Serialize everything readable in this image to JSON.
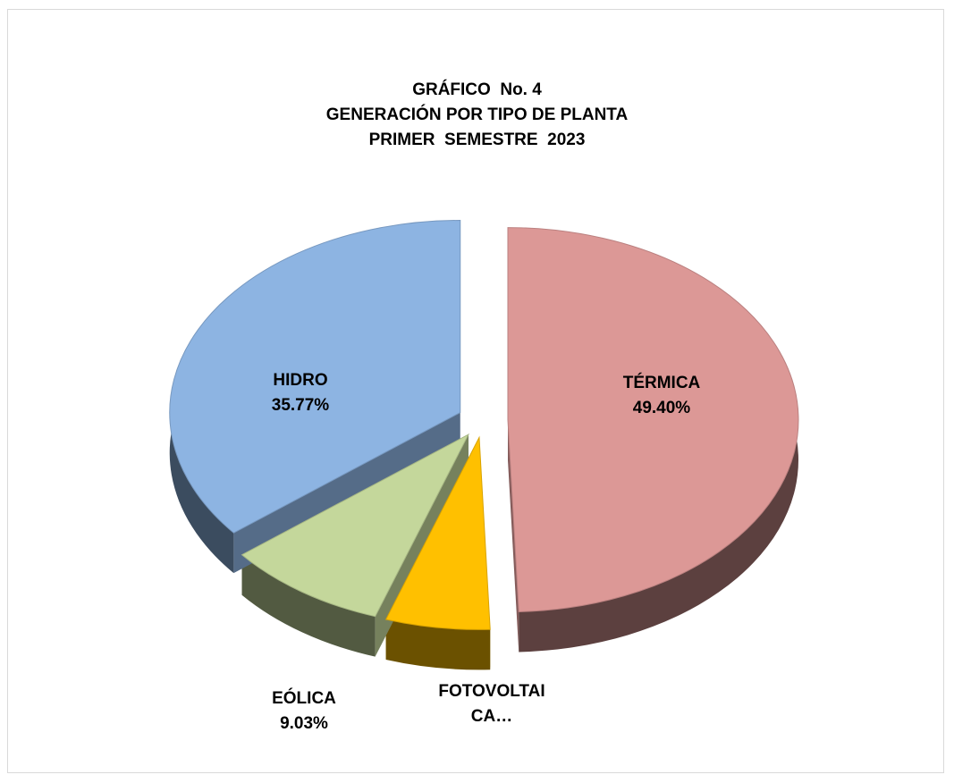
{
  "chart_data": {
    "type": "pie",
    "title": [
      "GRÁFICO  No. 4",
      "GENERACIÓN POR TIPO DE PLANTA",
      "PRIMER  SEMESTRE  2023"
    ],
    "categories": [
      "TÉRMICA",
      "FOTOVOLTAICA…",
      "EÓLICA",
      "HIDRO"
    ],
    "values": [
      49.4,
      5.8,
      9.03,
      35.77
    ],
    "value_labels": [
      "49.40%",
      null,
      "9.03%",
      "35.77%"
    ],
    "colors": [
      "#dc9896",
      "#ffc000",
      "#c4d79b",
      "#8db4e2"
    ]
  }
}
